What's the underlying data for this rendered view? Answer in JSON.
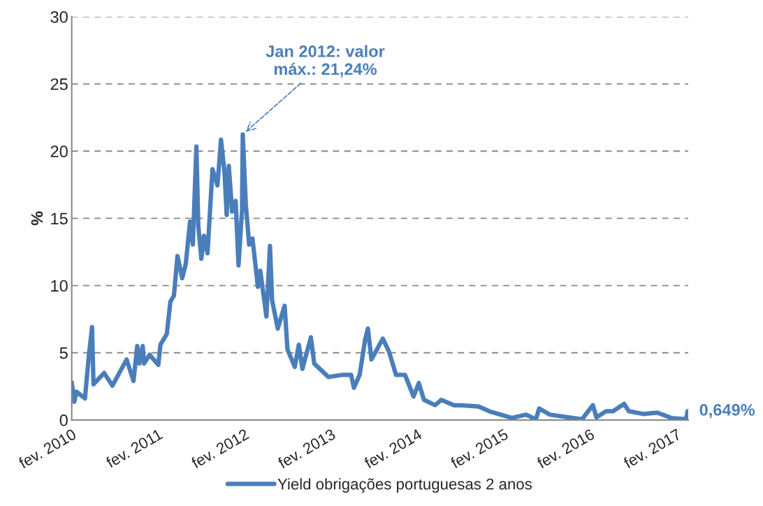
{
  "chart_data": {
    "type": "line",
    "ylabel": "%",
    "legend": "bottom",
    "grid": "y",
    "marker": "none",
    "line_style": "solid",
    "xlim": [
      "2010-02-01",
      "2017-03-22"
    ],
    "ylim": [
      0,
      30
    ],
    "yticks": [
      0,
      5,
      10,
      15,
      20,
      25,
      30
    ],
    "xticks": [
      {
        "value": "2010-02-01",
        "label": "fev. 2010"
      },
      {
        "value": "2011-02-01",
        "label": "fev. 2011"
      },
      {
        "value": "2012-02-01",
        "label": "fev. 2012"
      },
      {
        "value": "2013-02-01",
        "label": "fev. 2013"
      },
      {
        "value": "2014-02-01",
        "label": "fev. 2014"
      },
      {
        "value": "2015-02-01",
        "label": "fev. 2015"
      },
      {
        "value": "2016-02-01",
        "label": "fev. 2016"
      },
      {
        "value": "2017-02-01",
        "label": "fev. 2017"
      }
    ],
    "annotations": [
      {
        "text": "Jan 2012: valor máx.: 21,24%",
        "x": "2012-01-25",
        "y": 21.24
      },
      {
        "text": "0,649%",
        "x": "2017-03-19",
        "y": 0.649
      }
    ],
    "series": [
      {
        "name": "Yield obrigações portuguesas 2 anos",
        "color": "#4a7ebb",
        "x": [
          "2010-02-01",
          "2010-02-12",
          "2010-02-21",
          "2010-03-29",
          "2010-04-14",
          "2010-04-28",
          "2010-05-04",
          "2010-06-18",
          "2010-07-23",
          "2010-09-21",
          "2010-10-20",
          "2010-11-05",
          "2010-11-14",
          "2010-11-28",
          "2010-12-04",
          "2010-12-27",
          "2011-02-02",
          "2011-02-11",
          "2011-03-10",
          "2011-03-25",
          "2011-04-09",
          "2011-04-24",
          "2011-05-14",
          "2011-05-29",
          "2011-06-16",
          "2011-06-28",
          "2011-07-13",
          "2011-07-21",
          "2011-08-03",
          "2011-08-14",
          "2011-08-29",
          "2011-09-19",
          "2011-10-10",
          "2011-10-25",
          "2011-11-09",
          "2011-11-18",
          "2011-11-27",
          "2011-12-11",
          "2011-12-26",
          "2012-01-07",
          "2012-01-22",
          "2012-01-25",
          "2012-02-07",
          "2012-02-21",
          "2012-03-06",
          "2012-03-29",
          "2012-04-08",
          "2012-05-04",
          "2012-05-19",
          "2012-05-28",
          "2012-06-21",
          "2012-07-20",
          "2012-08-01",
          "2012-09-01",
          "2012-09-18",
          "2012-10-03",
          "2012-11-08",
          "2012-11-22",
          "2013-01-21",
          "2013-03-19",
          "2013-04-27",
          "2013-05-09",
          "2013-06-02",
          "2013-06-25",
          "2013-07-07",
          "2013-07-22",
          "2013-09-08",
          "2013-10-04",
          "2013-11-03",
          "2013-12-11",
          "2014-01-16",
          "2014-02-07",
          "2014-03-01",
          "2014-04-17",
          "2014-05-13",
          "2014-07-06",
          "2014-08-05",
          "2014-10-18",
          "2014-12-02",
          "2015-03-08",
          "2015-05-06",
          "2015-06-17",
          "2015-07-01",
          "2015-08-15",
          "2015-11-01",
          "2015-12-29",
          "2016-02-13",
          "2016-02-28",
          "2016-04-09",
          "2016-05-08",
          "2016-06-24",
          "2016-07-14",
          "2016-09-13",
          "2016-11-11",
          "2017-01-09",
          "2017-03-13",
          "2017-03-19"
        ],
        "values": [
          2.8,
          1.35,
          2.1,
          1.6,
          4.7,
          6.9,
          2.65,
          3.5,
          2.55,
          4.5,
          2.9,
          5.5,
          4.2,
          5.5,
          4.2,
          4.85,
          4.1,
          5.6,
          6.4,
          8.8,
          9.25,
          12.2,
          10.55,
          11.6,
          14.75,
          13.05,
          20.35,
          14.45,
          12.0,
          13.7,
          12.4,
          18.65,
          17.45,
          20.85,
          18.4,
          15.25,
          18.9,
          15.5,
          16.3,
          11.5,
          15.65,
          21.24,
          16.0,
          13.05,
          13.5,
          9.9,
          11.1,
          7.7,
          12.95,
          8.9,
          6.8,
          8.5,
          5.25,
          3.95,
          5.6,
          3.8,
          6.15,
          4.2,
          3.2,
          3.35,
          3.35,
          2.4,
          3.35,
          5.95,
          6.8,
          4.5,
          6.05,
          5.1,
          3.35,
          3.35,
          1.75,
          2.75,
          1.5,
          1.1,
          1.5,
          1.1,
          1.1,
          1.0,
          0.65,
          0.15,
          0.4,
          0.05,
          0.85,
          0.4,
          0.2,
          0.05,
          1.1,
          0.2,
          0.65,
          0.65,
          1.2,
          0.65,
          0.45,
          0.55,
          0.15,
          0.05,
          0.649
        ]
      }
    ]
  }
}
